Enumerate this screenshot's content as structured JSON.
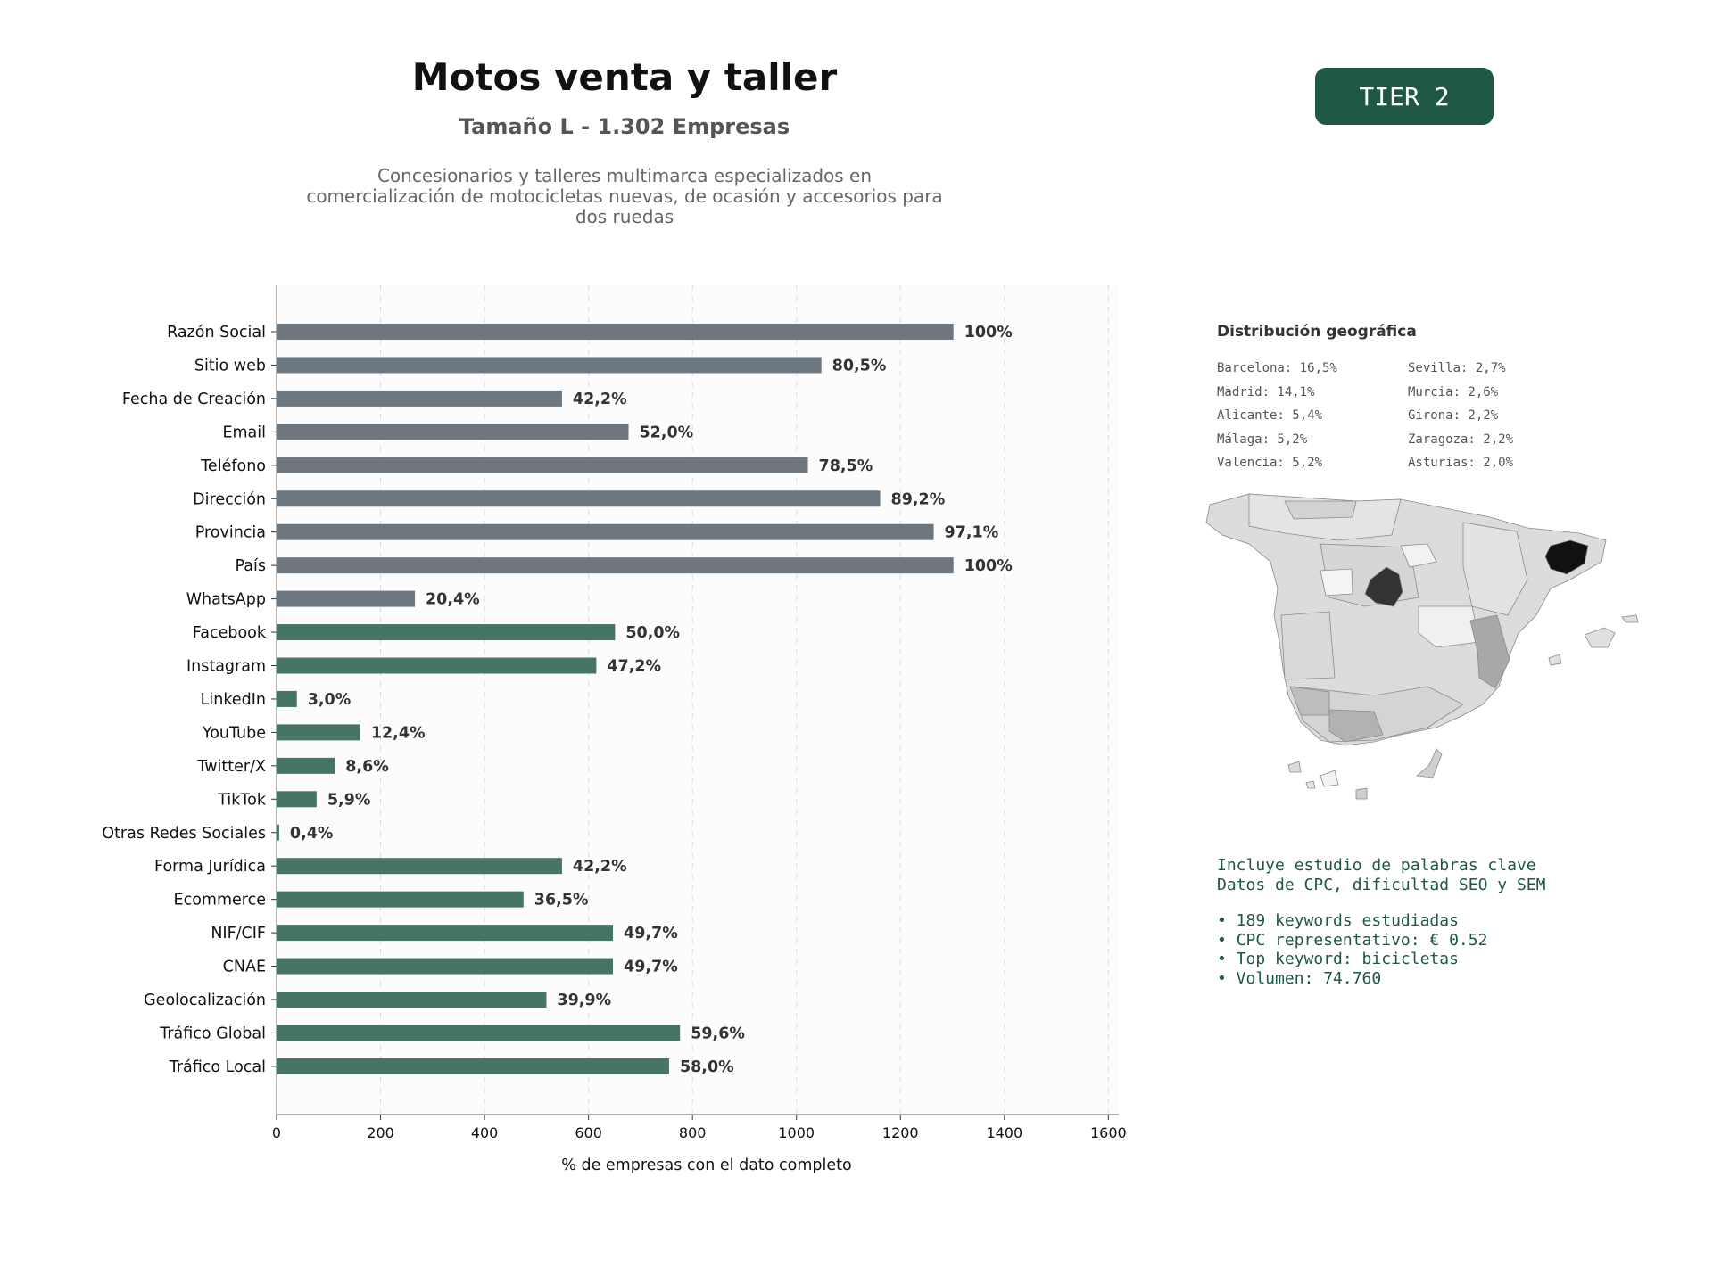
{
  "header": {
    "title": "Motos venta y taller",
    "subtitle": "Tamaño L - 1.302 Empresas",
    "description_lines": [
      "Concesionarios y talleres multimarca especializados en",
      "comercialización de motocicletas nuevas, de ocasión y accesorios para",
      "dos ruedas"
    ],
    "badge": "TIER 2"
  },
  "chart_data": {
    "type": "bar",
    "orientation": "horizontal",
    "xlabel": "% de empresas con el dato completo",
    "xlim": [
      0,
      1620
    ],
    "xticks": [
      0,
      200,
      400,
      600,
      800,
      1000,
      1200,
      1400,
      1600
    ],
    "grid": true,
    "categories": [
      "Razón Social",
      "Sitio web",
      "Fecha de Creación",
      "Email",
      "Teléfono",
      "Dirección",
      "Provincia",
      "País",
      "WhatsApp",
      "Facebook",
      "Instagram",
      "LinkedIn",
      "YouTube",
      "Twitter/X",
      "TikTok",
      "Otras Redes Sociales",
      "Forma Jurídica",
      "Ecommerce",
      "NIF/CIF",
      "CNAE",
      "Geolocalización",
      "Tráfico Global",
      "Tráfico Local"
    ],
    "values": [
      1302,
      1048,
      549,
      677,
      1022,
      1161,
      1264,
      1302,
      266,
      651,
      615,
      39,
      161,
      112,
      77,
      5,
      549,
      475,
      647,
      647,
      519,
      776,
      755
    ],
    "labels": [
      "100%",
      "80,5%",
      "42,2%",
      "52,0%",
      "78,5%",
      "89,2%",
      "97,1%",
      "100%",
      "20,4%",
      "50,0%",
      "47,2%",
      "3,0%",
      "12,4%",
      "8,6%",
      "5,9%",
      "0,4%",
      "42,2%",
      "36,5%",
      "49,7%",
      "49,7%",
      "39,9%",
      "59,6%",
      "58,0%"
    ],
    "colors": [
      "#6d7780",
      "#6d7780",
      "#6d7780",
      "#6d7780",
      "#6d7780",
      "#6d7780",
      "#6d7780",
      "#6d7780",
      "#6d7780",
      "#477563",
      "#477563",
      "#477563",
      "#477563",
      "#477563",
      "#477563",
      "#477563",
      "#477563",
      "#477563",
      "#477563",
      "#477563",
      "#477563",
      "#477563",
      "#477563"
    ]
  },
  "geo": {
    "title": "Distribución geográfica",
    "col1": [
      "Barcelona: 16,5%",
      "Madrid: 14,1%",
      "Alicante: 5,4%",
      "Málaga: 5,2%",
      "Valencia: 5,2%"
    ],
    "col2": [
      "Sevilla: 2,7%",
      "Murcia: 2,6%",
      "Girona: 2,2%",
      "Zaragoza: 2,2%",
      "Asturias: 2,0%"
    ]
  },
  "keywords": {
    "line1": "Incluye estudio de palabras clave",
    "line2": "Datos de CPC, dificultad SEO y SEM",
    "bullets": [
      "• 189 keywords estudiadas",
      "• CPC representativo: € 0.52",
      "• Top keyword: bicicletas",
      "• Volumen: 74.760"
    ]
  }
}
